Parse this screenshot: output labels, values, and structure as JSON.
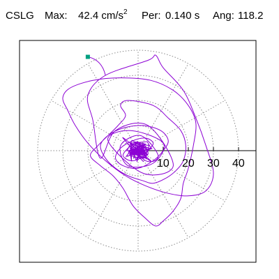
{
  "header": {
    "station": "CSLG",
    "max_label": "Max:",
    "max_value": "42.4",
    "max_unit": "cm/s",
    "max_unit_exp": "2",
    "period_label": "Per:",
    "period_value": "0.140 s",
    "angle_label": "Ang:",
    "angle_value": "118.2"
  },
  "chart_data": {
    "type": "line",
    "title": "",
    "xlabel": "",
    "ylabel": "",
    "polar": true,
    "rings": [
      10,
      20,
      30,
      40
    ],
    "radial_range": [
      0,
      45
    ],
    "spokes_deg": [
      0,
      30,
      60,
      90,
      120,
      150,
      180,
      210,
      240,
      270,
      300,
      330
    ],
    "grid": true,
    "tick_labels": [
      "10",
      "20",
      "30",
      "40"
    ],
    "max_point": {
      "r": 42.4,
      "angle_deg": 118.2
    },
    "series": [
      {
        "color": "#8c00d4",
        "marker_color": "#00a080",
        "x": [
          -1,
          -3,
          2,
          5,
          -2,
          -6,
          3,
          8,
          1,
          -7,
          -4,
          6,
          10,
          -3,
          -12,
          2,
          14,
          4,
          -9,
          -15,
          -18,
          -20,
          -13,
          4,
          7,
          10,
          18,
          23,
          27,
          30,
          27,
          20,
          12,
          3,
          -5,
          -13,
          -20,
          -25,
          -28,
          -30,
          -27,
          -18,
          -7,
          5,
          14,
          20,
          23,
          22,
          20,
          18,
          17,
          14,
          10,
          7,
          3,
          -2,
          -6,
          -10,
          -15,
          -19,
          -16,
          -12,
          -8,
          -5,
          -7,
          -4,
          6,
          12,
          17,
          19,
          18,
          15,
          11,
          6,
          2,
          -4,
          -9,
          -13,
          -15,
          -12,
          -6,
          2,
          9,
          12,
          10,
          6,
          0,
          -6,
          -9,
          -7,
          -2,
          3,
          6,
          4,
          1,
          -3,
          -6,
          -4,
          -1,
          2,
          4,
          2,
          -1,
          -3,
          -1,
          1,
          0
        ],
        "y": [
          1,
          3,
          -2,
          -4,
          2,
          5,
          -4,
          -2,
          6,
          2,
          -6,
          -5,
          3,
          8,
          4,
          -9,
          -6,
          10,
          8,
          -3,
          12,
          22,
          30,
          36,
          38,
          33,
          24,
          13,
          2,
          -9,
          -16,
          -18,
          -17,
          -14,
          -10,
          -4,
          3,
          10,
          16,
          21,
          25,
          28,
          29,
          28,
          24,
          18,
          11,
          2,
          -7,
          -13,
          -19,
          -24,
          -28,
          -30,
          -27,
          -22,
          -15,
          -10,
          -6,
          -2,
          2,
          6,
          10,
          14,
          18,
          20,
          18,
          13,
          8,
          2,
          -4,
          -8,
          -11,
          -13,
          -12,
          -10,
          -7,
          -3,
          2,
          6,
          9,
          10,
          8,
          4,
          0,
          -4,
          -7,
          -6,
          -3,
          1,
          4,
          5,
          3,
          0,
          -3,
          -4,
          -2,
          1,
          3,
          2,
          -1,
          -2,
          0,
          1,
          0,
          -1,
          0
        ]
      }
    ]
  }
}
